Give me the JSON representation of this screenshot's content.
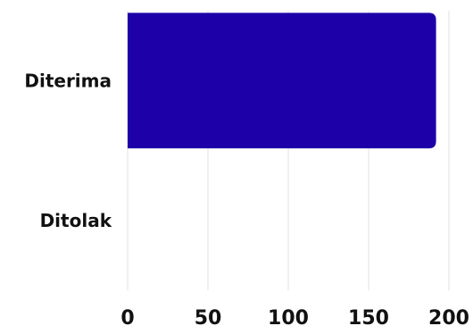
{
  "chart_data": {
    "type": "bar",
    "orientation": "horizontal",
    "categories": [
      "Diterima",
      "Ditolak"
    ],
    "values": [
      192,
      0
    ],
    "xlim": [
      0,
      200
    ],
    "xticks": [
      0,
      50,
      100,
      150,
      200
    ],
    "title": "",
    "xlabel": "",
    "ylabel": "",
    "grid": "vertical",
    "legend": "none",
    "bar_color": "#1d00a8",
    "grid_color": "#e6e6e6",
    "text_color": "#111111"
  }
}
